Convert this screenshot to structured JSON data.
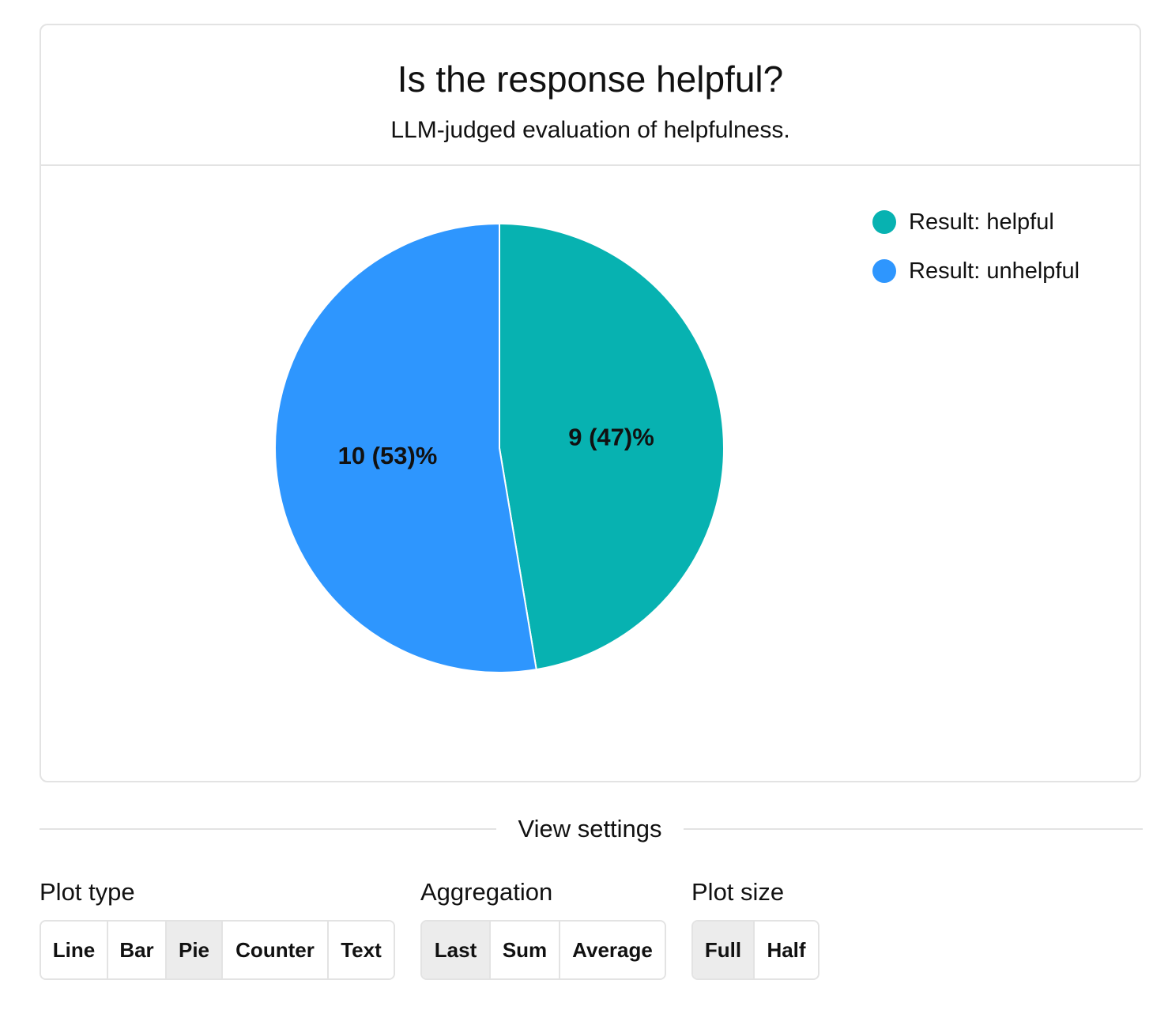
{
  "card": {
    "title": "Is the response helpful?",
    "subtitle": "LLM-judged evaluation of helpfulness."
  },
  "chart_data": {
    "type": "pie",
    "title": "Is the response helpful?",
    "subtitle": "LLM-judged evaluation of helpfulness.",
    "slices": [
      {
        "name": "Result: helpful",
        "value": 9,
        "percent": 47,
        "label": "9 (47)%",
        "color": "#07b2b1"
      },
      {
        "name": "Result: unhelpful",
        "value": 10,
        "percent": 53,
        "label": "10 (53)%",
        "color": "#2e96fe"
      }
    ],
    "start_angle": "12 o'clock",
    "direction": "clockwise",
    "legend": {
      "position": "top-right",
      "items": [
        {
          "label": "Result: helpful",
          "color": "#07b2b1"
        },
        {
          "label": "Result: unhelpful",
          "color": "#2e96fe"
        }
      ]
    }
  },
  "view_settings": {
    "heading": "View settings",
    "plot_type": {
      "label": "Plot type",
      "options": [
        "Line",
        "Bar",
        "Pie",
        "Counter",
        "Text"
      ],
      "selected": "Pie"
    },
    "aggregation": {
      "label": "Aggregation",
      "options": [
        "Last",
        "Sum",
        "Average"
      ],
      "selected": "Last"
    },
    "plot_size": {
      "label": "Plot size",
      "options": [
        "Full",
        "Half"
      ],
      "selected": "Full"
    }
  }
}
